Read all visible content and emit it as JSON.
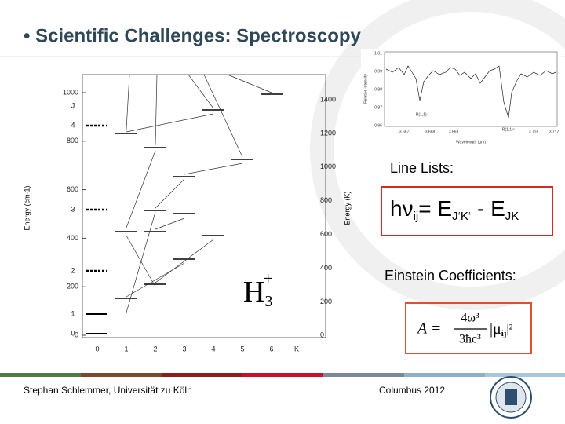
{
  "slide": {
    "title": "• Scientific Challenges: Spectroscopy",
    "figure": {
      "y_label_left": "Energy (cm-1)",
      "y_label_right": "Energy (K)",
      "left_ticks": [
        "1000",
        "800",
        "600",
        "400",
        "200",
        "0"
      ],
      "right_ticks": [
        "1400",
        "1200",
        "1000",
        "800",
        "600",
        "400",
        "200",
        "0"
      ],
      "k_ticks": [
        "0",
        "1",
        "2",
        "3",
        "4",
        "5",
        "6"
      ],
      "k_label": "K",
      "j_labels": [
        "J",
        "4",
        "3",
        "2",
        "1",
        "0"
      ],
      "molecule": "H",
      "molecule_sub": "3",
      "molecule_sup": "+"
    },
    "spectrum": {
      "y_label": "Relative intensity",
      "x_label": "Wavelength (µm)",
      "y_ticks": [
        "1.01",
        "0.99",
        "0.98",
        "0.97",
        "0.96"
      ],
      "x_ticks": [
        "3.667",
        "3.668",
        "3.669",
        "3.716",
        "3.717"
      ],
      "peaks": [
        "R(1,1)⁻",
        "R(1,1)⁺"
      ]
    },
    "line_lists": {
      "label": "Line Lists:",
      "formula": [
        "hν",
        "ij",
        "= E",
        "J‘K‘",
        " - E",
        "JK"
      ]
    },
    "einstein": {
      "label": "Einstein Coefficients:",
      "lhs": "A =",
      "num": "4ω³",
      "den": "3ħc³",
      "mu": "|μ",
      "mu_sub": "ij",
      "mu_end": "|²"
    },
    "footer": {
      "author": "Stephan Schlemmer, Universität zu Köln",
      "event": "Columbus 2012"
    }
  }
}
